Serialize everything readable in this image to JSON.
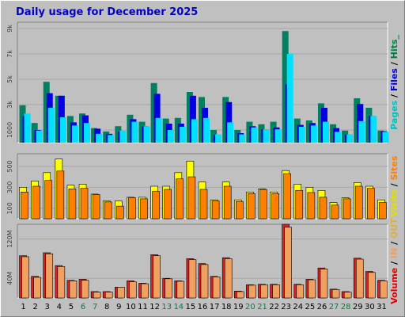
{
  "title": "Daily usage for December 2025",
  "chart_data": [
    {
      "type": "bar",
      "panel": "hits",
      "categories": [
        "1",
        "2",
        "3",
        "4",
        "5",
        "6",
        "7",
        "8",
        "9",
        "10",
        "11",
        "12",
        "13",
        "14",
        "15",
        "16",
        "17",
        "18",
        "19",
        "20",
        "21",
        "22",
        "23",
        "24",
        "25",
        "26",
        "27",
        "28",
        "29",
        "30",
        "31"
      ],
      "weekend_days": [
        "6",
        "7",
        "13",
        "14",
        "20",
        "21",
        "27",
        "28"
      ],
      "legend": [
        {
          "text": "Pages",
          "color": "#00c0c0"
        },
        {
          "text": " / ",
          "color": "#000000"
        },
        {
          "text": "Files",
          "color": "#0000e0"
        },
        {
          "text": " / ",
          "color": "#000000"
        },
        {
          "text": "Hits",
          "color": "#008040"
        },
        {
          "text": "_",
          "color": "#008040"
        }
      ],
      "ytick_labels": [
        {
          "label": "9k",
          "value": 9000
        },
        {
          "label": "7k",
          "value": 7000
        },
        {
          "label": "5k",
          "value": 5000
        },
        {
          "label": "3k",
          "value": 3000
        },
        {
          "label": "1000",
          "value": 1000
        }
      ],
      "ylim": [
        0,
        9500
      ],
      "series": [
        {
          "name": "Hits",
          "color": "#008060",
          "values": [
            2950,
            1550,
            4800,
            3700,
            2100,
            2300,
            1150,
            880,
            1300,
            2200,
            1650,
            4700,
            1900,
            1950,
            4000,
            3600,
            1000,
            3600,
            1000,
            1650,
            1450,
            1650,
            8800,
            1900,
            1750,
            3100,
            1450,
            950,
            3500,
            2750,
            950
          ]
        },
        {
          "name": "Files",
          "color": "#0000e0",
          "values": [
            2100,
            1000,
            3900,
            3700,
            1600,
            2150,
            1100,
            700,
            880,
            1850,
            1300,
            3850,
            1500,
            1500,
            3700,
            2750,
            600,
            3200,
            750,
            1300,
            1050,
            1200,
            4600,
            1400,
            1550,
            2750,
            1150,
            650,
            3050,
            2100,
            900
          ]
        },
        {
          "name": "Pages",
          "color": "#00e0ff",
          "values": [
            2300,
            950,
            2750,
            2000,
            1350,
            1550,
            700,
            600,
            950,
            1650,
            1300,
            1950,
            1000,
            1250,
            1850,
            1950,
            650,
            1600,
            650,
            1200,
            1050,
            1050,
            7000,
            1250,
            1350,
            1650,
            850,
            650,
            1700,
            2100,
            850
          ]
        }
      ]
    },
    {
      "type": "bar",
      "panel": "visits",
      "legend": [
        {
          "text": "Visits",
          "color": "#e0e000"
        },
        {
          "text": " / ",
          "color": "#000000"
        },
        {
          "text": "Sites",
          "color": "#ff8000"
        }
      ],
      "ytick_labels": [
        {
          "label": "500",
          "value": 500
        },
        {
          "label": "300",
          "value": 300
        },
        {
          "label": "100",
          "value": 100
        }
      ],
      "ylim": [
        0,
        620
      ],
      "series": [
        {
          "name": "Visits",
          "color": "#ffff00",
          "values": [
            300,
            360,
            440,
            570,
            320,
            330,
            235,
            170,
            170,
            205,
            205,
            310,
            310,
            440,
            550,
            350,
            180,
            350,
            180,
            255,
            285,
            255,
            460,
            330,
            300,
            270,
            155,
            200,
            345,
            310,
            180
          ]
        },
        {
          "name": "Sites",
          "color": "#ff8000",
          "values": [
            255,
            310,
            365,
            455,
            285,
            290,
            230,
            160,
            120,
            200,
            190,
            260,
            280,
            380,
            400,
            280,
            170,
            310,
            165,
            240,
            280,
            240,
            430,
            270,
            250,
            205,
            130,
            190,
            310,
            290,
            155
          ]
        }
      ]
    },
    {
      "type": "bar",
      "panel": "volume",
      "legend": [
        {
          "text": "Volume",
          "color": "#e00000"
        },
        {
          "text": " / ",
          "color": "#000000"
        },
        {
          "text": "IN",
          "color": "#f0a060"
        },
        {
          "text": " / ",
          "color": "#000000"
        },
        {
          "text": "OUT",
          "color": "#e0b040"
        }
      ],
      "ytick_labels": [
        {
          "label": "120M",
          "value": 120
        },
        {
          "label": "40M",
          "value": 40
        }
      ],
      "ylim": [
        0,
        150
      ],
      "series": [
        {
          "name": "Volume",
          "color": "#e02020",
          "values": [
            86,
            44,
            92,
            66,
            36,
            38,
            13,
            13,
            22,
            35,
            30,
            88,
            40,
            35,
            80,
            70,
            44,
            82,
            14,
            27,
            28,
            28,
            150,
            28,
            38,
            61,
            18,
            13,
            81,
            54,
            36
          ]
        },
        {
          "name": "IN",
          "color": "#f0a060",
          "values": [
            84,
            42,
            90,
            64,
            35,
            36,
            12,
            12,
            22,
            33,
            29,
            86,
            39,
            34,
            78,
            68,
            43,
            80,
            13,
            26,
            27,
            27,
            144,
            27,
            37,
            59,
            17,
            12,
            79,
            52,
            35
          ]
        }
      ]
    }
  ]
}
